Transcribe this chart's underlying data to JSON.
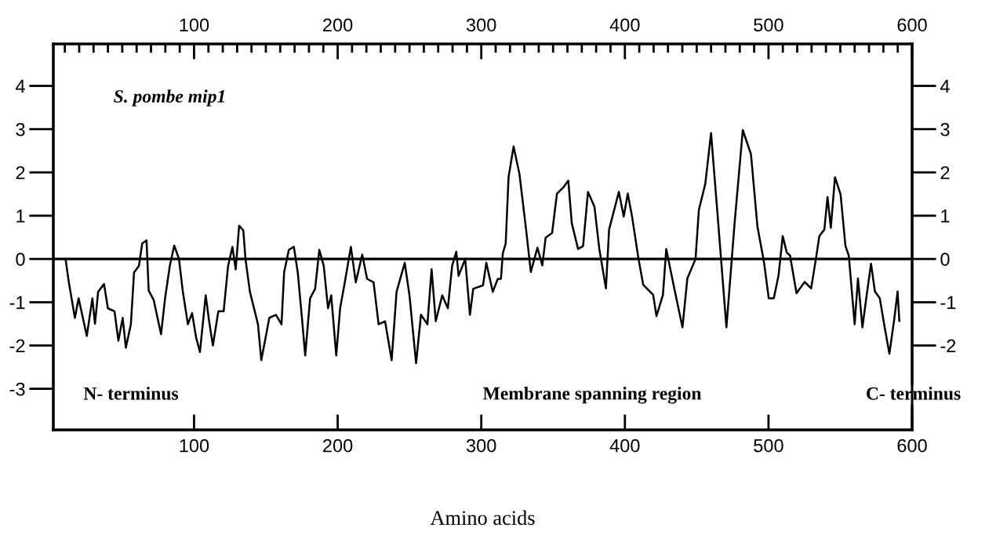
{
  "chart_data": {
    "type": "line",
    "xlabel": "Amino acids",
    "annotations": [
      "S. pombe mip1",
      "N- terminus",
      "Membrane spanning region",
      "C- terminus"
    ],
    "x": [
      10.5,
      12.8,
      17,
      19.6,
      25.3,
      29.2,
      31,
      33.2,
      37.3,
      40,
      44.6,
      47.3,
      50.3,
      52.5,
      56,
      58.2,
      61.6,
      63.9,
      66.9,
      68.4,
      71.9,
      77,
      79.8,
      83.1,
      86.2,
      89.5,
      92.2,
      95.7,
      98.6,
      101.4,
      104.1,
      108.1,
      110.5,
      113.1,
      116.9,
      120.6,
      123.7,
      126.7,
      129,
      131.4,
      134.3,
      135.8,
      138.9,
      144.5,
      146.8,
      149,
      152.4,
      157,
      160.9,
      162.7,
      166,
      169.5,
      172.2,
      175.1,
      177.4,
      180.8,
      184.3,
      187.2,
      190.3,
      193.3,
      195.5,
      199,
      201.7,
      204.6,
      209.2,
      212.6,
      217.1,
      220.5,
      225,
      228.5,
      233,
      237.6,
      241,
      246.7,
      250,
      254.6,
      258,
      262.5,
      265.4,
      268.3,
      272.8,
      276.7,
      279.7,
      282.6,
      284.2,
      288.8,
      292.1,
      294.4,
      301.2,
      303.5,
      308,
      311.5,
      313.7,
      315,
      317,
      319,
      322.5,
      326.6,
      331.2,
      334.5,
      339.1,
      342.5,
      344.8,
      349.3,
      352.7,
      357.3,
      360.6,
      363,
      367.4,
      370.9,
      374.3,
      378.8,
      382.2,
      386.8,
      389,
      395.8,
      399.2,
      402,
      405,
      409.5,
      412.8,
      419.7,
      422,
      426.5,
      428.8,
      434.4,
      440.1,
      443.5,
      449.2,
      451.5,
      456,
      460,
      465,
      470.7,
      476.4,
      482.1,
      487.8,
      492.3,
      496.9,
      500.2,
      503.7,
      507,
      509.9,
      512.7,
      515,
      519.5,
      525.2,
      529.7,
      533.2,
      535.4,
      538.9,
      541.1,
      543.4,
      546.3,
      550.2,
      553.6,
      555.9,
      560,
      562.3,
      565.4,
      568.4,
      571.4,
      574.1,
      577.5,
      580.9,
      584.2,
      587.7,
      589.9,
      591.1
    ],
    "series": [
      {
        "color": "#000000",
        "values": [
          0,
          -0.54,
          -1.36,
          -0.91,
          -1.78,
          -0.91,
          -1.5,
          -0.76,
          -0.58,
          -1.14,
          -1.21,
          -1.89,
          -1.36,
          -2.05,
          -1.51,
          -0.31,
          -0.16,
          0.36,
          0.43,
          -0.73,
          -0.95,
          -1.74,
          -0.91,
          -0.16,
          0.31,
          0,
          -0.76,
          -1.51,
          -1.25,
          -1.81,
          -2.15,
          -0.84,
          -1.44,
          -2.0,
          -1.21,
          -1.21,
          -0.16,
          0.28,
          -0.24,
          0.77,
          0.66,
          0,
          -0.76,
          -1.51,
          -2.34,
          -1.96,
          -1.36,
          -1.29,
          -1.51,
          -0.31,
          0.21,
          0.28,
          -0.31,
          -1.36,
          -2.23,
          -0.91,
          -0.69,
          0.21,
          -0.16,
          -1.14,
          -0.84,
          -2.23,
          -1.14,
          -0.61,
          0.28,
          -0.54,
          0.1,
          -0.46,
          -0.54,
          -1.51,
          -1.44,
          -2.34,
          -0.76,
          -0.09,
          -0.84,
          -2.41,
          -1.29,
          -1.51,
          -0.24,
          -1.44,
          -0.84,
          -1.14,
          -0.16,
          0.17,
          -0.39,
          0,
          -1.29,
          -0.69,
          -0.61,
          -0.09,
          -0.76,
          -0.46,
          -0.46,
          0.13,
          0.36,
          1.89,
          2.6,
          1.96,
          0.68,
          -0.3,
          0.26,
          -0.15,
          0.49,
          0.6,
          1.51,
          1.66,
          1.81,
          0.83,
          0.23,
          0.3,
          1.55,
          1.21,
          0.23,
          -0.68,
          0.68,
          1.55,
          0.98,
          1.51,
          0.98,
          0,
          -0.6,
          -0.83,
          -1.32,
          -0.83,
          0.23,
          -0.68,
          -1.58,
          -0.45,
          0,
          1.13,
          1.74,
          2.91,
          0.83,
          -1.58,
          0.83,
          2.98,
          2.42,
          0.75,
          -0.08,
          -0.91,
          -0.91,
          -0.38,
          0.53,
          0.15,
          0.08,
          -0.79,
          -0.53,
          -0.68,
          0.04,
          0.53,
          0.68,
          1.43,
          0.72,
          1.89,
          1.49,
          0.3,
          0.08,
          -1.51,
          -0.45,
          -1.58,
          -0.83,
          -0.11,
          -0.75,
          -0.91,
          -1.58,
          -2.19,
          -1.36,
          -0.75,
          -1.43
        ]
      }
    ],
    "xlim": [
      2,
      600
    ],
    "xticks": [
      100,
      200,
      300,
      400,
      500,
      600
    ],
    "x2lim": [
      2,
      600
    ],
    "x2ticks": [
      100,
      200,
      300,
      400,
      500,
      600
    ],
    "ylim": [
      -3.95,
      4.97
    ],
    "yticks": [
      -3,
      -2,
      -1,
      0,
      1,
      2,
      3,
      4
    ],
    "y2lim": [
      -3.95,
      4.97
    ],
    "y2ticks": [
      -2,
      -1,
      0,
      1,
      2,
      3,
      4
    ],
    "ref_lines": [
      {
        "axis": "y",
        "value": 0,
        "color": "#000000"
      }
    ],
    "grid": false,
    "legend": false,
    "marker": "none",
    "line_style": "solid"
  }
}
